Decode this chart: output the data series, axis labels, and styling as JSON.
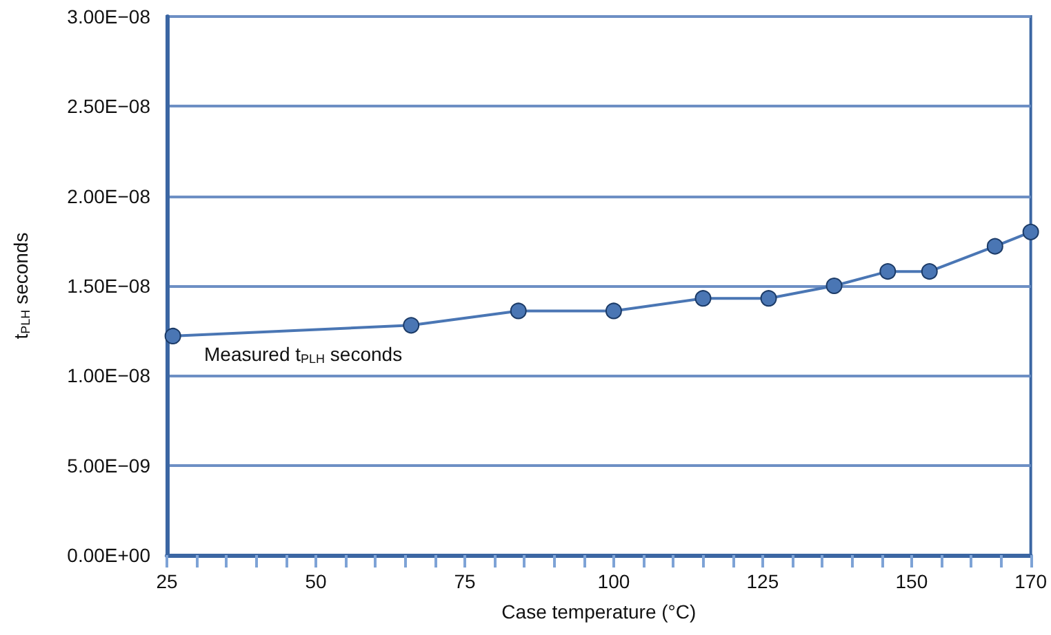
{
  "chart_data": {
    "type": "line",
    "xlabel": "Case temperature (°C)",
    "ylabel": "t$_{PLH}$ seconds",
    "x": [
      26,
      66,
      84,
      100,
      115,
      126,
      137,
      146,
      153,
      164,
      170
    ],
    "series": [
      {
        "color": "#4a76b4",
        "values": [
          1.22e-08,
          1.28e-08,
          1.36e-08,
          1.36e-08,
          1.43e-08,
          1.43e-08,
          1.5e-08,
          1.58e-08,
          1.58e-08,
          1.72e-08,
          1.8e-08
        ]
      }
    ],
    "xlim": [
      25,
      170
    ],
    "xticks": [
      25,
      {
        "value": 30,
        "label": null
      },
      {
        "value": 35,
        "label": null
      },
      {
        "value": 40,
        "label": null
      },
      {
        "value": 45,
        "label": null
      },
      50,
      {
        "value": 55,
        "label": null
      },
      {
        "value": 60,
        "label": null
      },
      {
        "value": 65,
        "label": null
      },
      {
        "value": 70,
        "label": null
      },
      75,
      {
        "value": 80,
        "label": null
      },
      {
        "value": 85,
        "label": null
      },
      {
        "value": 90,
        "label": null
      },
      {
        "value": 95,
        "label": null
      },
      100,
      {
        "value": 105,
        "label": null
      },
      {
        "value": 110,
        "label": null
      },
      {
        "value": 115,
        "label": null
      },
      {
        "value": 120,
        "label": null
      },
      125,
      {
        "value": 130,
        "label": null
      },
      {
        "value": 135,
        "label": null
      },
      {
        "value": 140,
        "label": null
      },
      {
        "value": 145,
        "label": null
      },
      150,
      {
        "value": 155,
        "label": null
      },
      {
        "value": 160,
        "label": null
      },
      {
        "value": 165,
        "label": null
      },
      170
    ],
    "ylim": [
      0,
      3e-08
    ],
    "yticks": [
      {
        "value": 0,
        "label": "0.00E+00"
      },
      {
        "value": 5e-09,
        "label": "5.00E−09"
      },
      {
        "value": 1e-08,
        "label": "1.00E−08"
      },
      {
        "value": 1.5e-08,
        "label": "1.50E−08"
      },
      {
        "value": 2e-08,
        "label": "2.00E−08"
      },
      {
        "value": 2.5e-08,
        "label": "2.50E−08"
      },
      {
        "value": 3e-08,
        "label": "3.00E−08"
      }
    ],
    "grid": "y",
    "marker": "circle",
    "line_style": "solid",
    "annotations": [
      "Measured t$_{PLH}$ seconds"
    ]
  }
}
